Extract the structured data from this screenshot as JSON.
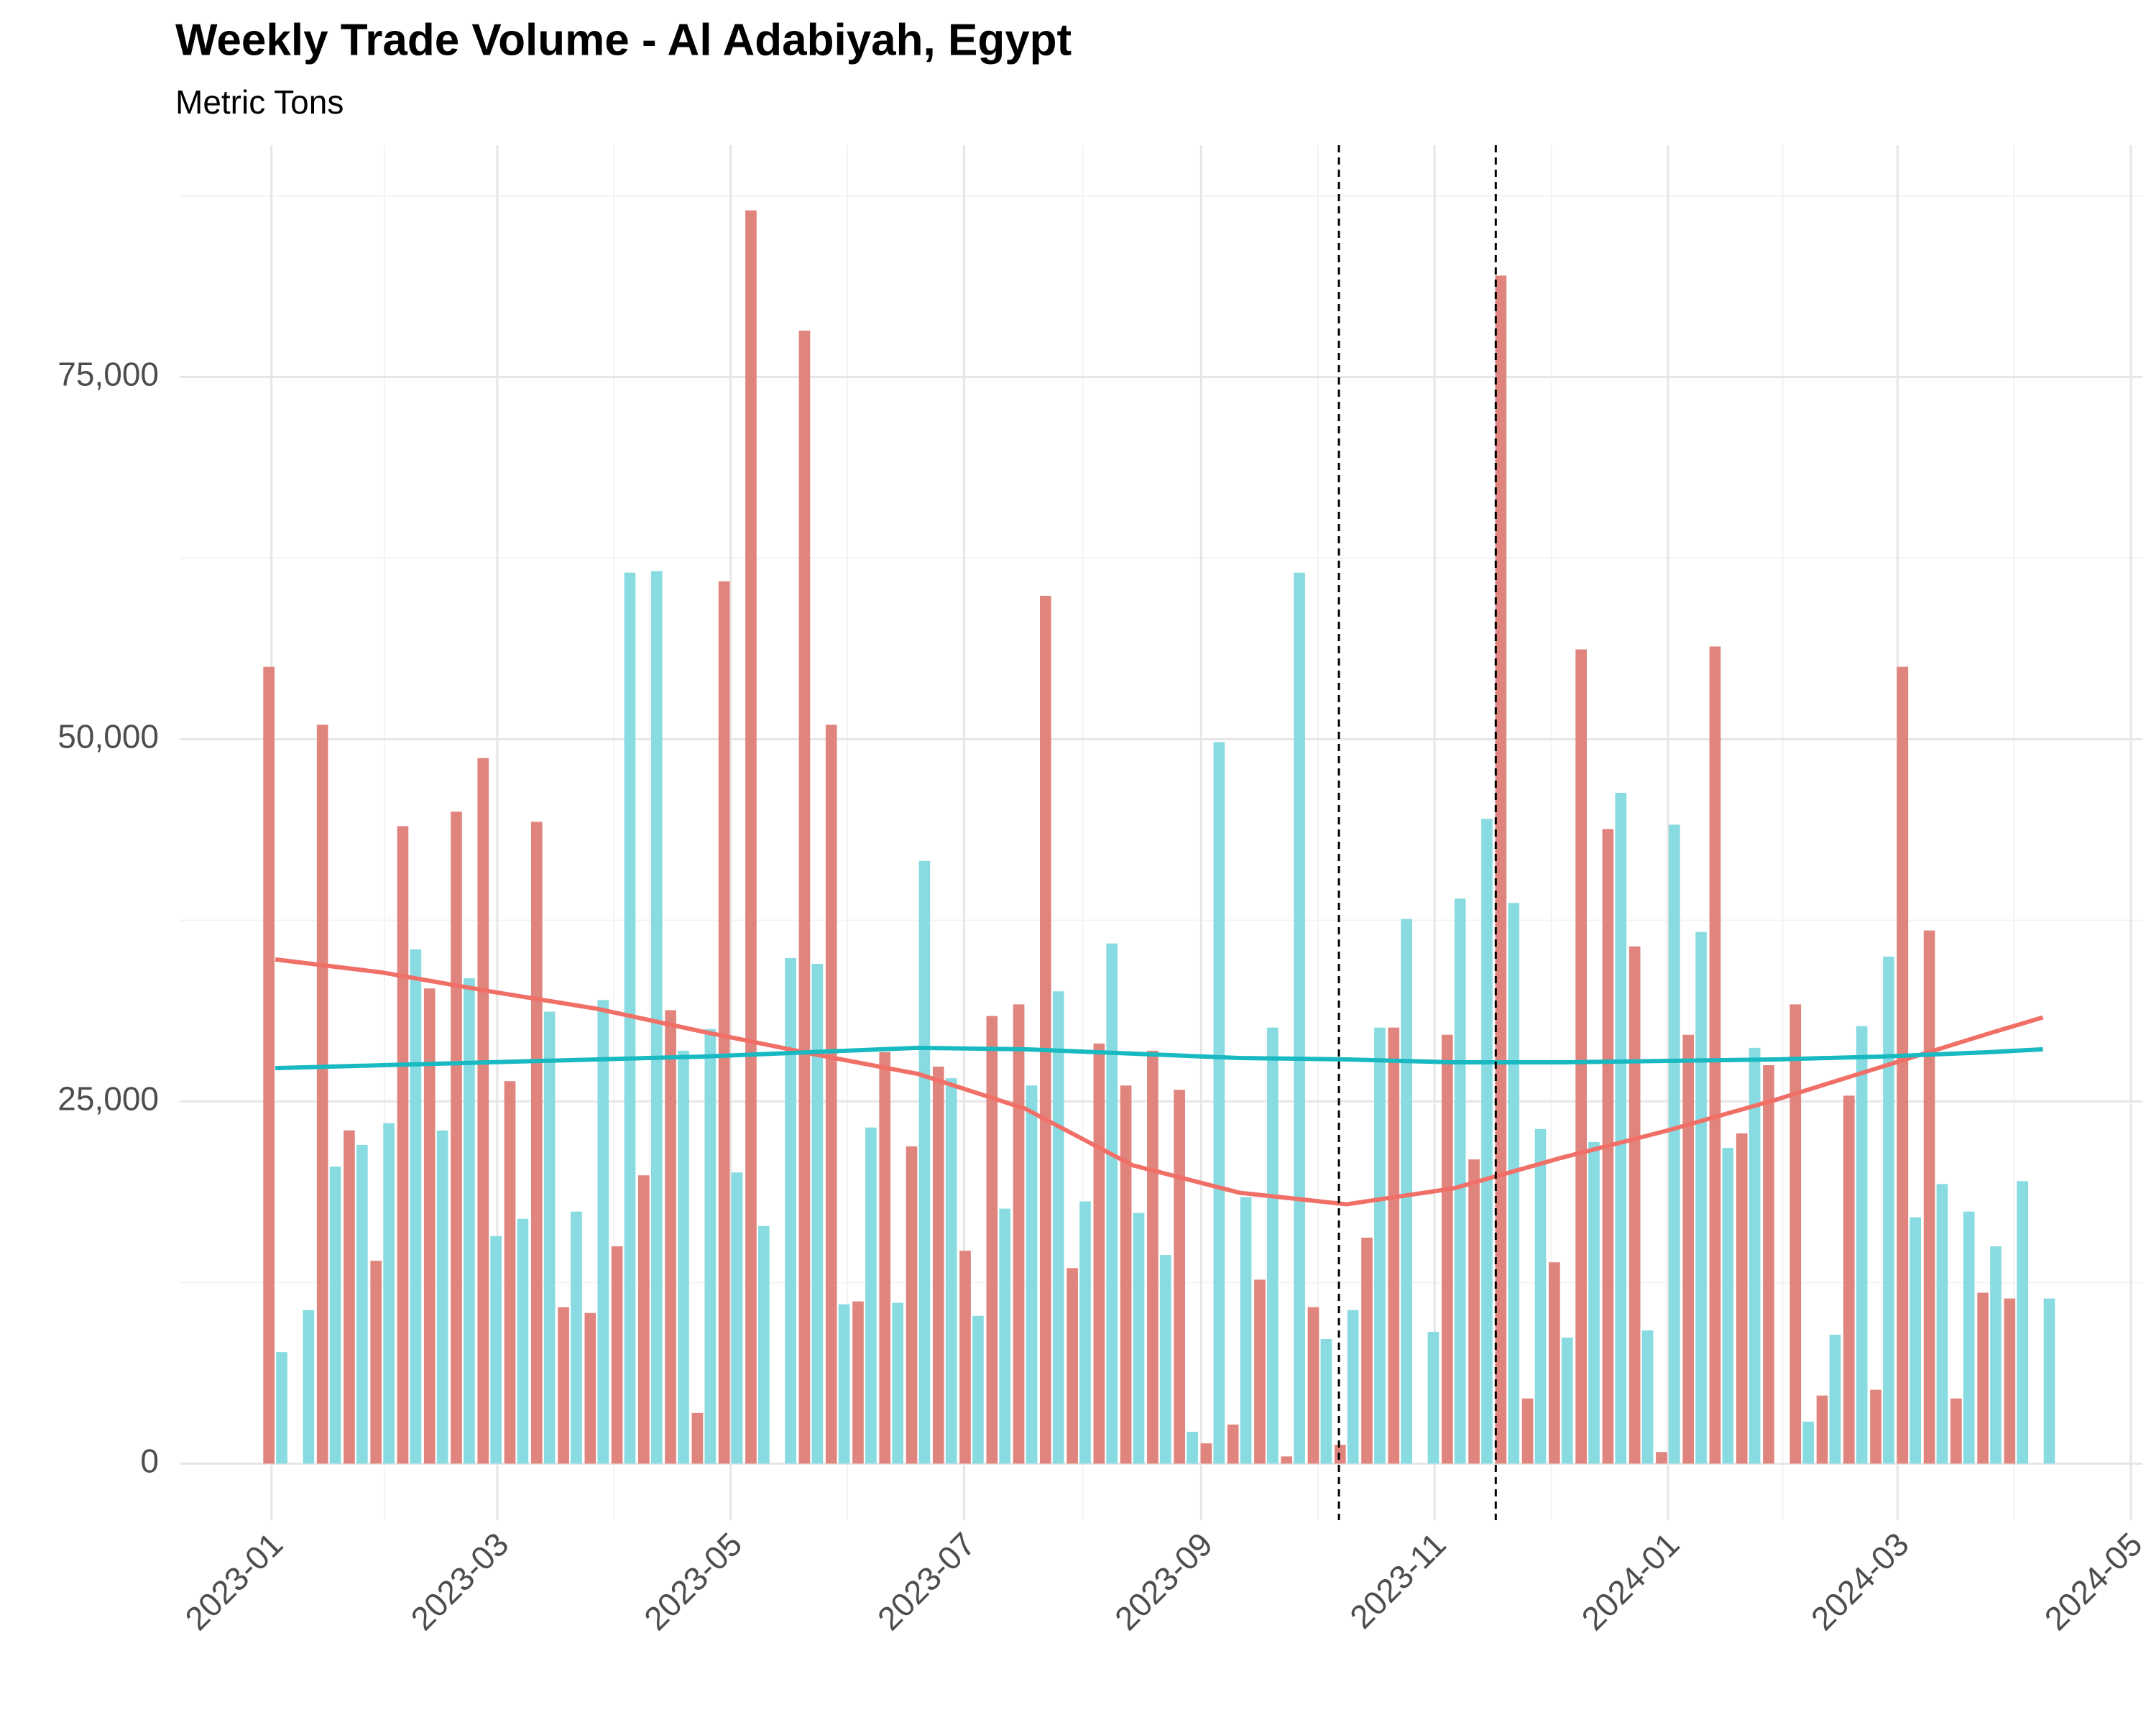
{
  "chart_data": {
    "type": "bar",
    "title": "Weekly Trade Volume - Al Adabiyah, Egypt",
    "subtitle": "Metric Tons",
    "x": [
      "2023-01-02",
      "2023-01-09",
      "2023-01-16",
      "2023-01-23",
      "2023-01-30",
      "2023-02-06",
      "2023-02-13",
      "2023-02-20",
      "2023-02-27",
      "2023-03-06",
      "2023-03-13",
      "2023-03-20",
      "2023-03-27",
      "2023-04-03",
      "2023-04-10",
      "2023-04-17",
      "2023-04-24",
      "2023-05-01",
      "2023-05-08",
      "2023-05-15",
      "2023-05-22",
      "2023-05-29",
      "2023-06-05",
      "2023-06-12",
      "2023-06-19",
      "2023-06-26",
      "2023-07-03",
      "2023-07-10",
      "2023-07-17",
      "2023-07-24",
      "2023-07-31",
      "2023-08-07",
      "2023-08-14",
      "2023-08-21",
      "2023-08-28",
      "2023-09-04",
      "2023-09-11",
      "2023-09-18",
      "2023-09-25",
      "2023-10-02",
      "2023-10-09",
      "2023-10-16",
      "2023-10-23",
      "2023-10-30",
      "2023-11-06",
      "2023-11-13",
      "2023-11-20",
      "2023-11-27",
      "2023-12-04",
      "2023-12-11",
      "2023-12-18",
      "2023-12-25",
      "2024-01-01",
      "2024-01-08",
      "2024-01-15",
      "2024-01-22",
      "2024-01-29",
      "2024-02-05",
      "2024-02-12",
      "2024-02-19",
      "2024-02-26",
      "2024-03-04",
      "2024-03-11",
      "2024-03-18",
      "2024-03-25",
      "2024-04-01",
      "2024-04-08"
    ],
    "series": [
      {
        "color": "#e0857d",
        "values": [
          55000,
          0,
          51000,
          23000,
          14000,
          44000,
          32800,
          45000,
          48700,
          26400,
          44300,
          10800,
          10400,
          15000,
          19900,
          31300,
          3500,
          60900,
          86500,
          0,
          78200,
          51000,
          11200,
          28400,
          21900,
          27400,
          14700,
          30900,
          31700,
          59900,
          13500,
          29000,
          26100,
          28500,
          25800,
          1400,
          2700,
          12700,
          500,
          10800,
          1300,
          15600,
          30100,
          0,
          29600,
          21000,
          82000,
          4500,
          13900,
          56200,
          43800,
          35700,
          800,
          29600,
          56400,
          22800,
          27500,
          31700,
          4700,
          25400,
          5100,
          55000,
          36800,
          4500,
          11800,
          11400,
          0
        ]
      },
      {
        "color": "#88dbe1",
        "values": [
          7700,
          10600,
          20500,
          22000,
          23500,
          35500,
          23000,
          33500,
          15700,
          16900,
          31200,
          17400,
          32000,
          61500,
          61600,
          28500,
          30000,
          20100,
          16400,
          34900,
          34500,
          11000,
          23200,
          11100,
          41600,
          26600,
          10200,
          17600,
          26100,
          32600,
          18100,
          35900,
          17300,
          14400,
          2200,
          49800,
          18400,
          30100,
          61500,
          8600,
          10600,
          30100,
          37600,
          9100,
          39000,
          44500,
          38700,
          23100,
          8700,
          22200,
          46300,
          9200,
          44100,
          36700,
          21800,
          28700,
          0,
          2900,
          8900,
          30200,
          35000,
          17000,
          19300,
          17400,
          15000,
          19500,
          11400
        ]
      }
    ],
    "trend_x": [
      "2023-01-02",
      "2023-01-30",
      "2023-02-27",
      "2023-03-27",
      "2023-04-24",
      "2023-05-22",
      "2023-06-19",
      "2023-07-17",
      "2023-08-14",
      "2023-09-11",
      "2023-10-09",
      "2023-11-06",
      "2023-12-04",
      "2024-01-01",
      "2024-01-29",
      "2024-02-26",
      "2024-03-25",
      "2024-04-08"
    ],
    "trends": [
      {
        "type": "line",
        "color": "#f07068",
        "values": [
          34800,
          33900,
          32600,
          31400,
          29800,
          28300,
          26900,
          24500,
          20600,
          18700,
          17900,
          19000,
          21100,
          23000,
          25100,
          27400,
          29700,
          30800
        ]
      },
      {
        "type": "line",
        "color": "#19b9c1",
        "values": [
          27300,
          27500,
          27700,
          27900,
          28100,
          28400,
          28700,
          28600,
          28300,
          28000,
          27900,
          27700,
          27700,
          27800,
          27900,
          28100,
          28400,
          28600
        ]
      }
    ],
    "vlines": [
      "2023-10-07",
      "2023-11-17"
    ],
    "xlim": [
      "2022-12-08",
      "2024-05-04"
    ],
    "ylim": [
      -3900,
      91000
    ],
    "xticks": [
      {
        "value": "2023-01-01",
        "label": "2023-01"
      },
      {
        "value": "2023-03-01",
        "label": "2023-03"
      },
      {
        "value": "2023-05-01",
        "label": "2023-05"
      },
      {
        "value": "2023-07-01",
        "label": "2023-07"
      },
      {
        "value": "2023-09-01",
        "label": "2023-09"
      },
      {
        "value": "2023-11-01",
        "label": "2023-11"
      },
      {
        "value": "2024-01-01",
        "label": "2024-01"
      },
      {
        "value": "2024-03-01",
        "label": "2024-03"
      },
      {
        "value": "2024-05-01",
        "label": "2024-05"
      }
    ],
    "yticks": [
      0,
      {
        "value": 25000,
        "label": "25,000"
      },
      {
        "value": 50000,
        "label": "50,000"
      },
      {
        "value": 75000,
        "label": "75,000"
      }
    ],
    "grid": true
  }
}
